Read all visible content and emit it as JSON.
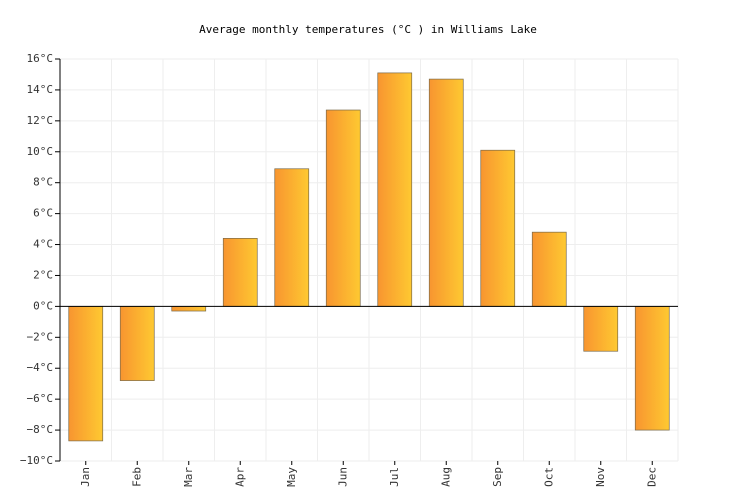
{
  "chart_data": {
    "type": "bar",
    "title": "Average monthly temperatures (°C ) in Williams Lake",
    "categories": [
      "Jan",
      "Feb",
      "Mar",
      "Apr",
      "May",
      "Jun",
      "Jul",
      "Aug",
      "Sep",
      "Oct",
      "Nov",
      "Dec"
    ],
    "values": [
      -8.7,
      -4.8,
      -0.3,
      4.4,
      8.9,
      12.7,
      15.1,
      14.7,
      10.1,
      4.8,
      -2.9,
      -8.0
    ],
    "colors": [
      "#f89530",
      "#fec931"
    ],
    "ylim": [
      -10,
      16
    ],
    "yticks": [
      {
        "value": -10,
        "label": "−10°C"
      },
      {
        "value": -8,
        "label": "−8°C"
      },
      {
        "value": -6,
        "label": "−6°C"
      },
      {
        "value": -4,
        "label": "−4°C"
      },
      {
        "value": -2,
        "label": "−2°C"
      },
      {
        "value": 0,
        "label": "0°C"
      },
      {
        "value": 2,
        "label": "2°C"
      },
      {
        "value": 4,
        "label": "4°C"
      },
      {
        "value": 6,
        "label": "6°C"
      },
      {
        "value": 8,
        "label": "8°C"
      },
      {
        "value": 10,
        "label": "10°C"
      },
      {
        "value": 12,
        "label": "12°C"
      },
      {
        "value": 14,
        "label": "14°C"
      },
      {
        "value": 16,
        "label": "16°C"
      }
    ],
    "grid": true
  }
}
